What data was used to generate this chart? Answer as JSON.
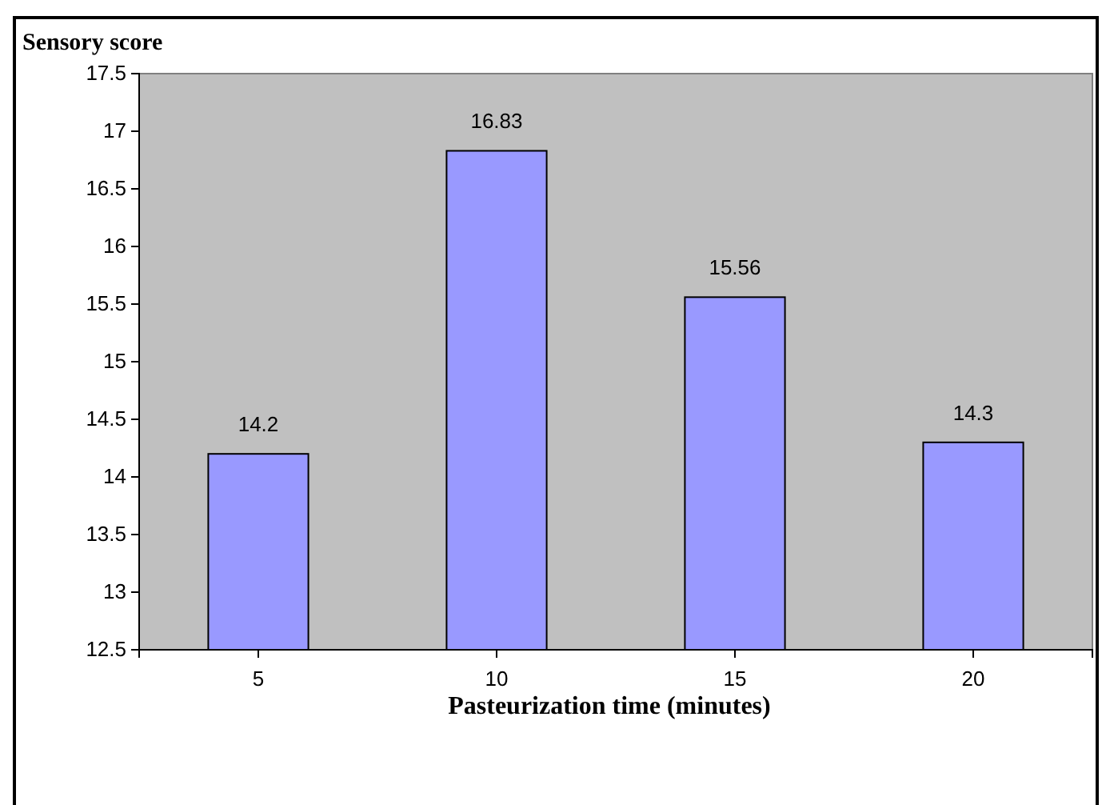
{
  "chart_data": {
    "type": "bar",
    "ylabel": "Sensory score",
    "xlabel": "Pasteurization time (minutes)",
    "categories": [
      "5",
      "10",
      "15",
      "20"
    ],
    "values": [
      14.2,
      16.83,
      15.56,
      14.3
    ],
    "color": "#9999ff",
    "ylim": [
      12.5,
      17.5
    ],
    "yticks": [
      {
        "value": 12.5,
        "label": "12.5"
      },
      13,
      {
        "value": 13.5,
        "label": "13.5"
      },
      14,
      {
        "value": 14.5,
        "label": "14.5"
      },
      15,
      {
        "value": 15.5,
        "label": "15.5"
      },
      16,
      {
        "value": 16.5,
        "label": "16.5"
      },
      17,
      {
        "value": 17.5,
        "label": "17.5"
      }
    ],
    "data_labels": true
  }
}
